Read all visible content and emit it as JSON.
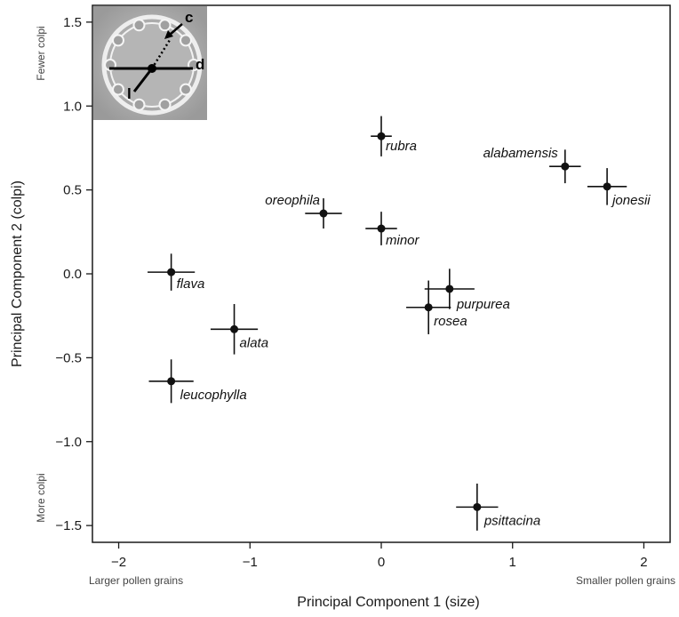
{
  "chart_data": {
    "type": "scatter",
    "title": "",
    "xlabel": "Principal Component 1 (size)",
    "ylabel": "Principal Component 2 (colpi)",
    "xlim": [
      -2.2,
      2.2
    ],
    "ylim": [
      -1.6,
      1.6
    ],
    "x_ticks": [
      -2,
      -1,
      0,
      1,
      2
    ],
    "x_tick_labels": [
      "−2",
      "−1",
      "0",
      "1",
      "2"
    ],
    "y_ticks": [
      -1.5,
      -1.0,
      -0.5,
      0.0,
      0.5,
      1.0,
      1.5
    ],
    "y_tick_labels": [
      "−1.5",
      "−1.0",
      "−0.5",
      "0.0",
      "0.5",
      "1.0",
      "1.5"
    ],
    "x_direction_labels": {
      "low": "Larger pollen grains",
      "high": "Smaller pollen grains"
    },
    "y_direction_labels": {
      "high": "Fewer colpi",
      "low": "More colpi"
    },
    "grid": false,
    "points": [
      {
        "label": "rubra",
        "x": 0.0,
        "y": 0.82,
        "xerr": 0.08,
        "yerr": 0.12
      },
      {
        "label": "alabamensis",
        "x": 1.4,
        "y": 0.64,
        "xerr": 0.12,
        "yerr": 0.1
      },
      {
        "label": "jonesii",
        "x": 1.72,
        "y": 0.52,
        "xerr": 0.15,
        "yerr": 0.11
      },
      {
        "label": "oreophila",
        "x": -0.44,
        "y": 0.36,
        "xerr": 0.14,
        "yerr": 0.09
      },
      {
        "label": "minor",
        "x": 0.0,
        "y": 0.27,
        "xerr": 0.12,
        "yerr": 0.1
      },
      {
        "label": "flava",
        "x": -1.6,
        "y": 0.01,
        "xerr": 0.18,
        "yerr": 0.11
      },
      {
        "label": "purpurea",
        "x": 0.52,
        "y": -0.09,
        "xerr": 0.19,
        "yerr": 0.12
      },
      {
        "label": "rosea",
        "x": 0.36,
        "y": -0.2,
        "xerr": 0.17,
        "yerr": 0.16
      },
      {
        "label": "alata",
        "x": -1.12,
        "y": -0.33,
        "xerr": 0.18,
        "yerr": 0.15
      },
      {
        "label": "leucophylla",
        "x": -1.6,
        "y": -0.64,
        "xerr": 0.17,
        "yerr": 0.13
      },
      {
        "label": "psittacina",
        "x": 0.73,
        "y": -1.39,
        "xerr": 0.16,
        "yerr": 0.14
      }
    ],
    "inset_letters": [
      "c",
      "d",
      "l"
    ]
  }
}
